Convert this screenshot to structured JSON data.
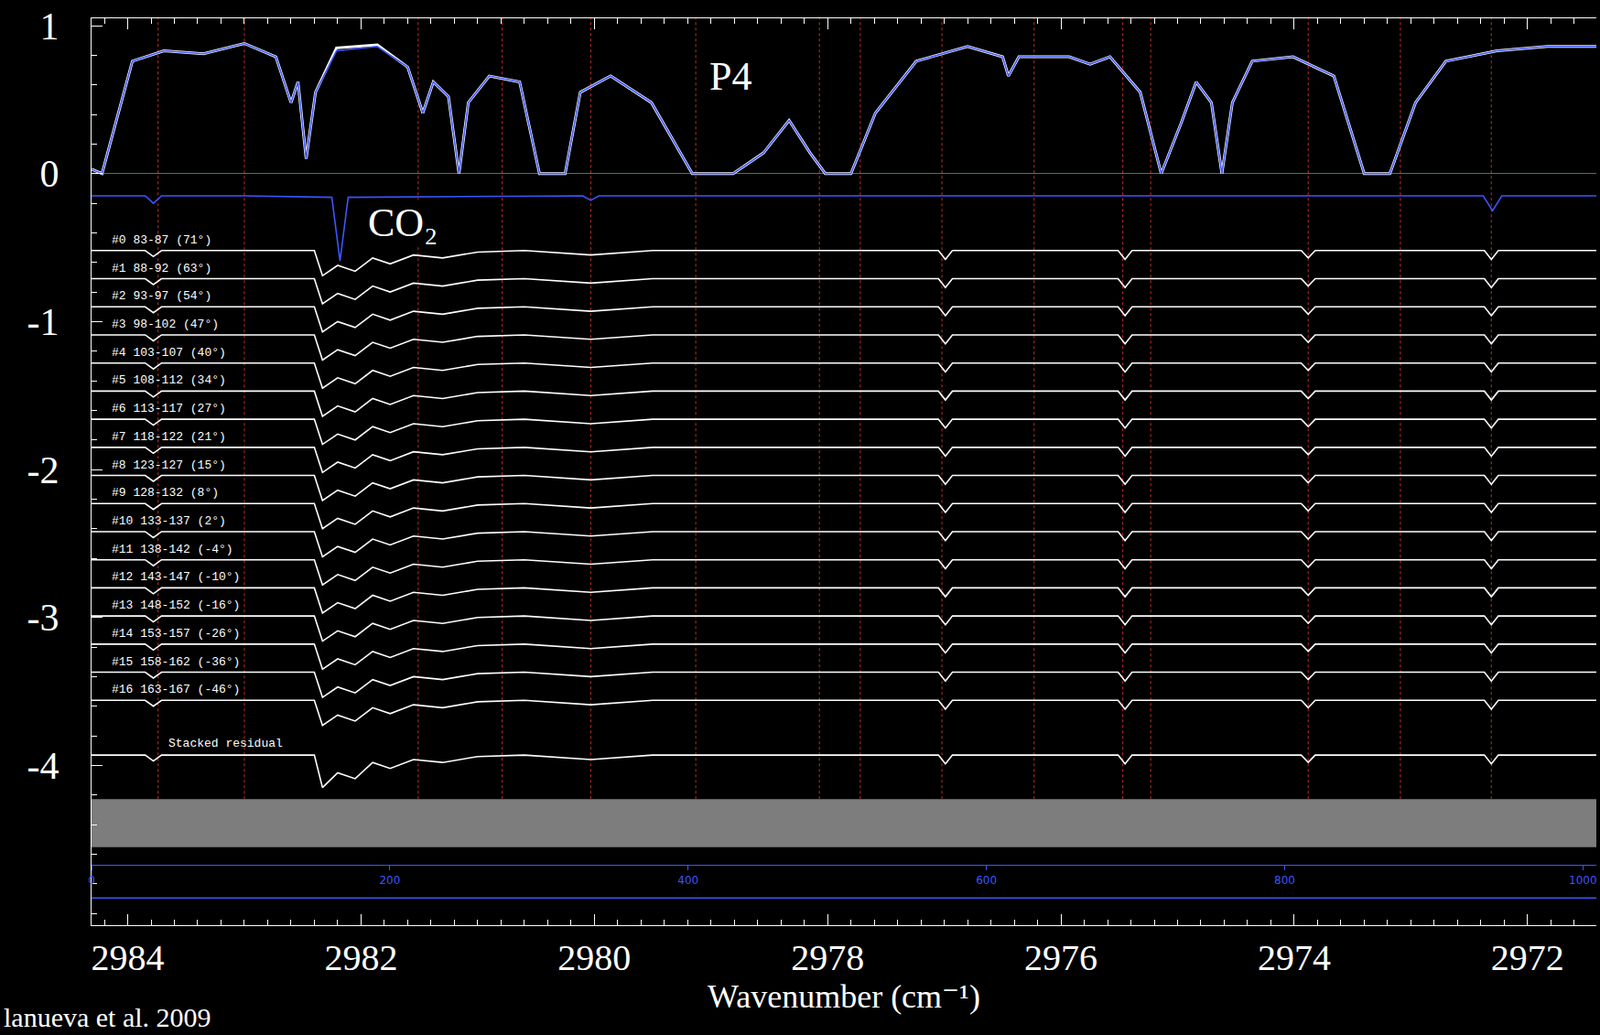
{
  "chart_data": {
    "type": "line",
    "x_label": "Wavenumber (cm⁻¹)",
    "xlim": [
      2984.31,
      2971.41
    ],
    "xticks": [
      2984,
      2982,
      2980,
      2978,
      2976,
      2974,
      2972
    ],
    "ylim": [
      -5.08,
      1.05
    ],
    "yticks": [
      1,
      0,
      -1,
      -2,
      -3,
      -4
    ],
    "grid": false,
    "credit": "lanueva et al. 2009",
    "annotations": [
      {
        "text": "P4",
        "x": 2978.83,
        "y": 0.66
      },
      {
        "text": "CO₂",
        "x": 2981.95,
        "y": -0.33
      }
    ],
    "spectrum": {
      "x": [
        2984.31,
        2984.22,
        2983.96,
        2983.69,
        2983.35,
        2983.0,
        2982.73,
        2982.6,
        2982.54,
        2982.47,
        2982.39,
        2982.21,
        2981.86,
        2981.6,
        2981.47,
        2981.38,
        2981.25,
        2981.16,
        2981.08,
        2980.9,
        2980.64,
        2980.47,
        2980.25,
        2980.12,
        2979.86,
        2979.51,
        2979.16,
        2978.81,
        2978.55,
        2978.33,
        2978.15,
        2978.02,
        2977.8,
        2977.59,
        2977.24,
        2976.8,
        2976.5,
        2976.45,
        2976.36,
        2975.93,
        2975.75,
        2975.58,
        2975.32,
        2975.14,
        2974.97,
        2974.84,
        2974.71,
        2974.62,
        2974.53,
        2974.36,
        2974.01,
        2973.66,
        2973.4,
        2973.18,
        2972.96,
        2972.7,
        2972.26,
        2971.83,
        2971.41
      ],
      "series": [
        {
          "color": "#ffffff",
          "values": [
            0.03,
            0.0,
            0.76,
            0.83,
            0.81,
            0.88,
            0.79,
            0.48,
            0.62,
            0.1,
            0.55,
            0.85,
            0.87,
            0.72,
            0.41,
            0.62,
            0.52,
            0.0,
            0.48,
            0.66,
            0.62,
            0.0,
            0.0,
            0.55,
            0.66,
            0.48,
            0.0,
            0.0,
            0.14,
            0.36,
            0.14,
            0.0,
            0.0,
            0.41,
            0.76,
            0.86,
            0.79,
            0.66,
            0.79,
            0.79,
            0.74,
            0.79,
            0.55,
            0.0,
            0.34,
            0.62,
            0.48,
            0.0,
            0.48,
            0.76,
            0.79,
            0.66,
            0.0,
            0.0,
            0.48,
            0.76,
            0.83,
            0.86,
            0.86
          ]
        },
        {
          "color": "#3d55ff",
          "values": [
            0.03,
            0.0,
            0.76,
            0.83,
            0.81,
            0.88,
            0.79,
            0.48,
            0.62,
            0.1,
            0.55,
            0.83,
            0.86,
            0.72,
            0.41,
            0.62,
            0.52,
            0.0,
            0.48,
            0.66,
            0.62,
            0.0,
            0.0,
            0.55,
            0.66,
            0.48,
            0.0,
            0.0,
            0.14,
            0.36,
            0.14,
            0.0,
            0.0,
            0.41,
            0.76,
            0.86,
            0.79,
            0.66,
            0.79,
            0.79,
            0.74,
            0.79,
            0.55,
            0.0,
            0.34,
            0.62,
            0.48,
            0.0,
            0.48,
            0.76,
            0.79,
            0.66,
            0.0,
            0.0,
            0.48,
            0.76,
            0.83,
            0.86,
            0.86
          ]
        }
      ]
    },
    "co2_model": {
      "color": "#3d55ff",
      "x": [
        2984.31,
        2983.85,
        2983.78,
        2983.71,
        2983.0,
        2982.25,
        2982.18,
        2982.11,
        2980.1,
        2980.03,
        2979.96,
        2972.38,
        2972.3,
        2972.22,
        2971.41
      ],
      "values": [
        -0.15,
        -0.15,
        -0.2,
        -0.15,
        -0.15,
        -0.16,
        -0.59,
        -0.16,
        -0.15,
        -0.18,
        -0.15,
        -0.15,
        -0.25,
        -0.15,
        -0.15
      ]
    },
    "reference_lines": [
      2983.74,
      2983.0,
      2981.51,
      2980.79,
      2980.03,
      2979.13,
      2978.07,
      2977.72,
      2977.02,
      2976.23,
      2975.47,
      2975.23,
      2973.88,
      2973.09,
      2972.31
    ],
    "residuals": {
      "color": "#ffffff",
      "x": [
        2984.31,
        2983.85,
        2983.78,
        2983.71,
        2982.4,
        2982.33,
        2982.2,
        2982.05,
        2981.9,
        2981.75,
        2981.55,
        2981.3,
        2981.0,
        2980.6,
        2980.03,
        2979.5,
        2977.05,
        2976.99,
        2976.93,
        2975.51,
        2975.45,
        2975.39,
        2973.94,
        2973.88,
        2973.82,
        2972.37,
        2972.31,
        2972.25,
        2971.41
      ],
      "series": [
        {
          "name": "#0 83-87 (71°)",
          "values": [
            -0.52,
            -0.52,
            -0.56,
            -0.52,
            -0.52,
            -0.69,
            -0.62,
            -0.66,
            -0.57,
            -0.61,
            -0.55,
            -0.57,
            -0.53,
            -0.52,
            -0.55,
            -0.52,
            -0.52,
            -0.58,
            -0.52,
            -0.52,
            -0.58,
            -0.52,
            -0.52,
            -0.57,
            -0.52,
            -0.52,
            -0.58,
            -0.52,
            -0.52
          ]
        },
        {
          "name": "#1 88-92 (63°)",
          "values": [
            -0.71,
            -0.71,
            -0.75,
            -0.71,
            -0.71,
            -0.88,
            -0.81,
            -0.85,
            -0.76,
            -0.8,
            -0.74,
            -0.76,
            -0.72,
            -0.71,
            -0.74,
            -0.71,
            -0.71,
            -0.77,
            -0.71,
            -0.71,
            -0.77,
            -0.71,
            -0.71,
            -0.76,
            -0.71,
            -0.71,
            -0.77,
            -0.71,
            -0.71
          ]
        },
        {
          "name": "#2 93-97 (54°)",
          "values": [
            -0.9,
            -0.9,
            -0.94,
            -0.9,
            -0.9,
            -1.07,
            -1.0,
            -1.04,
            -0.95,
            -0.99,
            -0.93,
            -0.95,
            -0.91,
            -0.9,
            -0.93,
            -0.9,
            -0.9,
            -0.96,
            -0.9,
            -0.9,
            -0.96,
            -0.9,
            -0.9,
            -0.95,
            -0.9,
            -0.9,
            -0.96,
            -0.9,
            -0.9
          ]
        },
        {
          "name": "#3 98-102 (47°)",
          "values": [
            -1.09,
            -1.09,
            -1.13,
            -1.09,
            -1.09,
            -1.26,
            -1.19,
            -1.23,
            -1.14,
            -1.18,
            -1.12,
            -1.14,
            -1.1,
            -1.09,
            -1.12,
            -1.09,
            -1.09,
            -1.15,
            -1.09,
            -1.09,
            -1.15,
            -1.09,
            -1.09,
            -1.14,
            -1.09,
            -1.09,
            -1.15,
            -1.09,
            -1.09
          ]
        },
        {
          "name": "#4 103-107 (40°)",
          "values": [
            -1.28,
            -1.28,
            -1.32,
            -1.28,
            -1.28,
            -1.45,
            -1.38,
            -1.42,
            -1.33,
            -1.37,
            -1.31,
            -1.33,
            -1.29,
            -1.28,
            -1.31,
            -1.28,
            -1.28,
            -1.34,
            -1.28,
            -1.28,
            -1.34,
            -1.28,
            -1.28,
            -1.33,
            -1.28,
            -1.28,
            -1.34,
            -1.28,
            -1.28
          ]
        },
        {
          "name": "#5 108-112 (34°)",
          "values": [
            -1.47,
            -1.47,
            -1.51,
            -1.47,
            -1.47,
            -1.64,
            -1.57,
            -1.61,
            -1.52,
            -1.56,
            -1.5,
            -1.52,
            -1.48,
            -1.47,
            -1.5,
            -1.47,
            -1.47,
            -1.53,
            -1.47,
            -1.47,
            -1.53,
            -1.47,
            -1.47,
            -1.52,
            -1.47,
            -1.47,
            -1.53,
            -1.47,
            -1.47
          ]
        },
        {
          "name": "#6 113-117 (27°)",
          "values": [
            -1.66,
            -1.66,
            -1.7,
            -1.66,
            -1.66,
            -1.83,
            -1.76,
            -1.8,
            -1.71,
            -1.75,
            -1.69,
            -1.71,
            -1.67,
            -1.66,
            -1.69,
            -1.66,
            -1.66,
            -1.72,
            -1.66,
            -1.66,
            -1.72,
            -1.66,
            -1.66,
            -1.71,
            -1.66,
            -1.66,
            -1.72,
            -1.66,
            -1.66
          ]
        },
        {
          "name": "#7 118-122 (21°)",
          "values": [
            -1.85,
            -1.85,
            -1.89,
            -1.85,
            -1.85,
            -2.02,
            -1.95,
            -1.99,
            -1.9,
            -1.94,
            -1.88,
            -1.9,
            -1.86,
            -1.85,
            -1.88,
            -1.85,
            -1.85,
            -1.91,
            -1.85,
            -1.85,
            -1.91,
            -1.85,
            -1.85,
            -1.9,
            -1.85,
            -1.85,
            -1.91,
            -1.85,
            -1.85
          ]
        },
        {
          "name": "#8 123-127 (15°)",
          "values": [
            -2.04,
            -2.04,
            -2.08,
            -2.04,
            -2.04,
            -2.21,
            -2.14,
            -2.18,
            -2.09,
            -2.13,
            -2.07,
            -2.09,
            -2.05,
            -2.04,
            -2.07,
            -2.04,
            -2.04,
            -2.1,
            -2.04,
            -2.04,
            -2.1,
            -2.04,
            -2.04,
            -2.09,
            -2.04,
            -2.04,
            -2.1,
            -2.04,
            -2.04
          ]
        },
        {
          "name": "#9 128-132 (8°)",
          "values": [
            -2.23,
            -2.23,
            -2.27,
            -2.23,
            -2.23,
            -2.4,
            -2.33,
            -2.37,
            -2.28,
            -2.32,
            -2.26,
            -2.28,
            -2.24,
            -2.23,
            -2.26,
            -2.23,
            -2.23,
            -2.29,
            -2.23,
            -2.23,
            -2.29,
            -2.23,
            -2.23,
            -2.28,
            -2.23,
            -2.23,
            -2.29,
            -2.23,
            -2.23
          ]
        },
        {
          "name": "#10 133-137 (2°)",
          "values": [
            -2.42,
            -2.42,
            -2.46,
            -2.42,
            -2.42,
            -2.59,
            -2.52,
            -2.56,
            -2.47,
            -2.51,
            -2.45,
            -2.47,
            -2.43,
            -2.42,
            -2.45,
            -2.42,
            -2.42,
            -2.48,
            -2.42,
            -2.42,
            -2.48,
            -2.42,
            -2.42,
            -2.47,
            -2.42,
            -2.42,
            -2.48,
            -2.42,
            -2.42
          ]
        },
        {
          "name": "#11 138-142 (-4°)",
          "values": [
            -2.61,
            -2.61,
            -2.65,
            -2.61,
            -2.61,
            -2.78,
            -2.71,
            -2.75,
            -2.66,
            -2.7,
            -2.64,
            -2.66,
            -2.62,
            -2.61,
            -2.64,
            -2.61,
            -2.61,
            -2.67,
            -2.61,
            -2.61,
            -2.67,
            -2.61,
            -2.61,
            -2.66,
            -2.61,
            -2.61,
            -2.67,
            -2.61,
            -2.61
          ]
        },
        {
          "name": "#12 143-147 (-10°)",
          "values": [
            -2.8,
            -2.8,
            -2.84,
            -2.8,
            -2.8,
            -2.97,
            -2.9,
            -2.94,
            -2.85,
            -2.89,
            -2.83,
            -2.85,
            -2.81,
            -2.8,
            -2.83,
            -2.8,
            -2.8,
            -2.86,
            -2.8,
            -2.8,
            -2.86,
            -2.8,
            -2.8,
            -2.85,
            -2.8,
            -2.8,
            -2.86,
            -2.8,
            -2.8
          ]
        },
        {
          "name": "#13 148-152 (-16°)",
          "values": [
            -2.99,
            -2.99,
            -3.03,
            -2.99,
            -2.99,
            -3.16,
            -3.09,
            -3.13,
            -3.04,
            -3.08,
            -3.02,
            -3.04,
            -3.0,
            -2.99,
            -3.02,
            -2.99,
            -2.99,
            -3.05,
            -2.99,
            -2.99,
            -3.05,
            -2.99,
            -2.99,
            -3.04,
            -2.99,
            -2.99,
            -3.05,
            -2.99,
            -2.99
          ]
        },
        {
          "name": "#14 153-157 (-26°)",
          "values": [
            -3.18,
            -3.18,
            -3.22,
            -3.18,
            -3.18,
            -3.35,
            -3.28,
            -3.32,
            -3.23,
            -3.27,
            -3.21,
            -3.23,
            -3.19,
            -3.18,
            -3.21,
            -3.18,
            -3.18,
            -3.24,
            -3.18,
            -3.18,
            -3.24,
            -3.18,
            -3.18,
            -3.23,
            -3.18,
            -3.18,
            -3.24,
            -3.18,
            -3.18
          ]
        },
        {
          "name": "#15 158-162 (-36°)",
          "values": [
            -3.37,
            -3.37,
            -3.41,
            -3.37,
            -3.37,
            -3.54,
            -3.47,
            -3.51,
            -3.42,
            -3.46,
            -3.4,
            -3.42,
            -3.38,
            -3.37,
            -3.4,
            -3.37,
            -3.37,
            -3.43,
            -3.37,
            -3.37,
            -3.43,
            -3.37,
            -3.37,
            -3.42,
            -3.37,
            -3.37,
            -3.43,
            -3.37,
            -3.37
          ]
        },
        {
          "name": "#16 163-167 (-46°)",
          "values": [
            -3.56,
            -3.56,
            -3.6,
            -3.56,
            -3.56,
            -3.73,
            -3.66,
            -3.7,
            -3.61,
            -3.65,
            -3.59,
            -3.61,
            -3.57,
            -3.56,
            -3.59,
            -3.56,
            -3.56,
            -3.62,
            -3.56,
            -3.56,
            -3.62,
            -3.56,
            -3.56,
            -3.61,
            -3.56,
            -3.56,
            -3.62,
            -3.56,
            -3.56
          ]
        }
      ],
      "stacked": {
        "name": "Stacked residual",
        "values": [
          -3.93,
          -3.93,
          -3.97,
          -3.93,
          -3.93,
          -4.15,
          -4.05,
          -4.09,
          -3.98,
          -4.02,
          -3.96,
          -3.98,
          -3.94,
          -3.93,
          -3.96,
          -3.93,
          -3.93,
          -3.99,
          -3.93,
          -3.93,
          -3.99,
          -3.93,
          -3.93,
          -3.98,
          -3.93,
          -3.93,
          -3.99,
          -3.93,
          -3.93
        ]
      }
    },
    "pixel_axis": {
      "color": "#3d55ff",
      "xlim": [
        0,
        1009
      ],
      "xticks": [
        0,
        200,
        400,
        600,
        800,
        1000
      ]
    }
  }
}
